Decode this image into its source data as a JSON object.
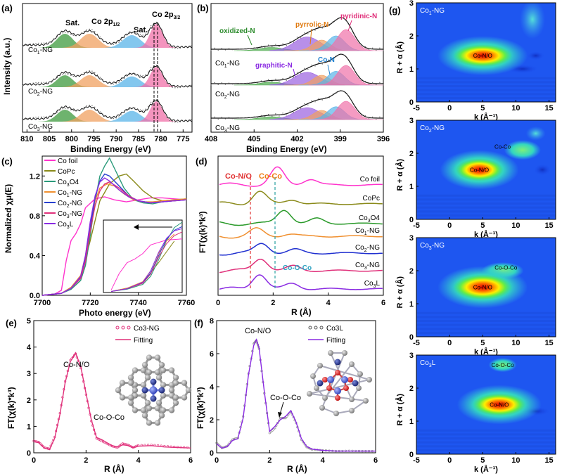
{
  "panels": {
    "a": {
      "letter": "(a)",
      "ylabel": "Intensity (a.u.)",
      "xlabel": "Binding Energy (eV)",
      "ticks": [
        "810",
        "805",
        "800",
        "795",
        "790",
        "785",
        "780",
        "775"
      ],
      "peaks": [
        "Sat.",
        "Co 2p",
        "1/2",
        "Sat.",
        "Co 2p",
        "3/2"
      ],
      "samples": [
        "Co",
        "1",
        "-NG",
        "Co",
        "2",
        "-NG",
        "Co",
        "3",
        "-NG"
      ]
    },
    "b": {
      "letter": "(b)",
      "xlabel": "Binding Energy (eV)",
      "ticks": [
        "408",
        "405",
        "402",
        "399",
        "396"
      ],
      "species": [
        "oxidized-N",
        "pyrrolic-N",
        "pyridinic-N",
        "Co-N",
        "graphitic-N"
      ],
      "samples": [
        "Co",
        "1",
        "-NG",
        "Co",
        "2",
        "-NG",
        "Co",
        "3",
        "-NG"
      ]
    },
    "c": {
      "letter": "(c)",
      "ylabel": "Normalized χμ(E)",
      "xlabel": "Photo energy (eV)",
      "xticks": [
        "7700",
        "7720",
        "7740",
        "7760"
      ],
      "yticks": [
        "0.0",
        "0.4",
        "0.8",
        "1.2"
      ],
      "legend": [
        {
          "label": "Co foil",
          "color": "#ff33cc"
        },
        {
          "label": "CoPc",
          "color": "#8a8a1a"
        },
        {
          "label": "Co3O4",
          "color": "#2a9a7a"
        },
        {
          "label": "Co1-NG",
          "color": "#f09030"
        },
        {
          "label": "Co2-NG",
          "color": "#2840d0"
        },
        {
          "label": "Co3-NG",
          "color": "#e0307a"
        },
        {
          "label": "Co3L",
          "color": "#8a2be2"
        }
      ]
    },
    "d": {
      "letter": "(d)",
      "ylabel": "FT(χ(k)*k³)",
      "xlabel": "R (Å)",
      "xticks": [
        "0",
        "2",
        "4",
        "6"
      ],
      "annotations": [
        "Co-N/O",
        "Co-Co",
        "Co-O-Co"
      ],
      "curves": [
        "Co foil",
        "CoPc",
        "Co3O4",
        "Co1-NG",
        "Co2-NG",
        "Co3-NG",
        "Co3L"
      ],
      "colors": [
        "#ff33cc",
        "#8a8a1a",
        "#2a9a2a",
        "#f09030",
        "#2030d0",
        "#e0307a",
        "#8a2be2"
      ]
    },
    "e": {
      "letter": "(e)",
      "ylabel": "FT(χ(k)*k³)",
      "xlabel": "R (Å)",
      "xticks": [
        "0",
        "2",
        "4",
        "6"
      ],
      "yticks": [
        "0",
        "1",
        "2",
        "3",
        "4",
        "5"
      ],
      "legend": [
        "Co3-NG",
        "Fitting"
      ],
      "annotations": [
        "Co-N/O",
        "Co-O-Co"
      ]
    },
    "f": {
      "letter": "(f)",
      "ylabel": "FT(χ(k)*k³)",
      "xlabel": "R (Å)",
      "xticks": [
        "0",
        "2",
        "4",
        "6"
      ],
      "yticks": [
        "0",
        "2",
        "4",
        "6",
        "8"
      ],
      "legend": [
        "Co3L",
        "Fitting"
      ],
      "annotations": [
        "Co-N/O",
        "Co-O-Co"
      ]
    },
    "g": {
      "letter": "(g)",
      "ylabel": "R + α (Å)",
      "xlabel": "k (Å⁻¹)",
      "xticks": [
        "-5",
        "0",
        "5",
        "10",
        "15"
      ],
      "yticks": [
        "0",
        "1",
        "2",
        "3"
      ],
      "maps": [
        {
          "sample": "Co1-NG",
          "labels": [
            "Co-N/O"
          ]
        },
        {
          "sample": "Co2-NG",
          "labels": [
            "Co-N/O",
            "Co-Co"
          ]
        },
        {
          "sample": "Co3-NG",
          "labels": [
            "Co-N/O",
            "Co-O-Co"
          ]
        },
        {
          "sample": "Co3L",
          "labels": [
            "Co-N/O",
            "Co-O-Co"
          ]
        }
      ]
    }
  },
  "chart_data": [
    {
      "type": "line",
      "title": "",
      "panel": "a",
      "xlabel": "Binding Energy (eV)",
      "ylabel": "Intensity (a.u.)",
      "xlim": [
        811,
        773
      ],
      "series": [
        {
          "name": "Co1-NG"
        },
        {
          "name": "Co2-NG"
        },
        {
          "name": "Co3-NG"
        }
      ],
      "peak_positions_eV": {
        "Sat. (2p1/2)": 801.5,
        "Co 2p1/2": 796,
        "Sat. (2p3/2)": 786.5,
        "Co 2p3/2": 781
      }
    },
    {
      "type": "line",
      "panel": "b",
      "xlabel": "Binding Energy (eV)",
      "xlim": [
        408,
        396
      ],
      "series": [
        {
          "name": "Co1-NG"
        },
        {
          "name": "Co2-NG"
        },
        {
          "name": "Co3-NG"
        }
      ],
      "component_positions_eV": {
        "oxidized-N": 403.5,
        "pyrrolic-N": 400.5,
        "graphitic-N": 401.2,
        "Co-N": 399.3,
        "pyridinic-N": 398.5
      }
    },
    {
      "type": "line",
      "panel": "c",
      "xlabel": "Photo energy (eV)",
      "ylabel": "Normalized χμ(E)",
      "xlim": [
        7700,
        7760
      ],
      "ylim": [
        0,
        1.4
      ],
      "series": [
        {
          "name": "Co foil",
          "x": [
            7700,
            7705,
            7708,
            7710,
            7712,
            7714,
            7716,
            7718,
            7722,
            7726,
            7730,
            7735,
            7740,
            7745,
            7750,
            7755,
            7760
          ],
          "y": [
            0,
            0.01,
            0.05,
            0.35,
            0.55,
            0.62,
            0.72,
            0.88,
            0.97,
            0.99,
            0.96,
            0.94,
            0.96,
            0.98,
            0.98,
            0.97,
            0.96
          ]
        },
        {
          "name": "CoPc",
          "x": [
            7700,
            7708,
            7712,
            7716,
            7720,
            7724,
            7728,
            7732,
            7735,
            7738,
            7742,
            7746,
            7750,
            7755,
            7760
          ],
          "y": [
            0,
            0.02,
            0.08,
            0.18,
            0.55,
            0.95,
            1.12,
            1.2,
            1.22,
            1.15,
            1.05,
            0.98,
            0.95,
            0.96,
            0.97
          ]
        },
        {
          "name": "Co3O4",
          "x": [
            7700,
            7708,
            7712,
            7716,
            7718,
            7720,
            7722,
            7724,
            7726,
            7728,
            7730,
            7734,
            7738,
            7742,
            7746,
            7750,
            7755,
            7760
          ],
          "y": [
            0,
            0.02,
            0.06,
            0.15,
            0.3,
            0.6,
            0.95,
            1.2,
            1.3,
            1.38,
            1.28,
            1.08,
            0.96,
            0.93,
            0.92,
            0.94,
            0.95,
            0.96
          ]
        },
        {
          "name": "Co1-NG",
          "x": [
            7700,
            7708,
            7712,
            7716,
            7718,
            7720,
            7722,
            7724,
            7727,
            7730,
            7734,
            7738,
            7742,
            7746,
            7750,
            7755,
            7760
          ],
          "y": [
            0,
            0.02,
            0.08,
            0.2,
            0.4,
            0.72,
            0.95,
            1.08,
            1.12,
            1.1,
            1.02,
            0.96,
            0.94,
            0.94,
            0.95,
            0.96,
            0.97
          ]
        },
        {
          "name": "Co2-NG",
          "x": [
            7700,
            7708,
            7712,
            7716,
            7718,
            7720,
            7722,
            7724,
            7726,
            7728,
            7732,
            7736,
            7740,
            7745,
            7750,
            7755,
            7760
          ],
          "y": [
            0,
            0.02,
            0.07,
            0.18,
            0.36,
            0.68,
            0.98,
            1.15,
            1.22,
            1.2,
            1.1,
            1.0,
            0.95,
            0.93,
            0.94,
            0.95,
            0.96
          ]
        },
        {
          "name": "Co3-NG",
          "x": [
            7700,
            7708,
            7712,
            7716,
            7718,
            7720,
            7722,
            7724,
            7726,
            7728,
            7732,
            7736,
            7740,
            7745,
            7750,
            7755,
            7760
          ],
          "y": [
            0,
            0.02,
            0.07,
            0.17,
            0.34,
            0.65,
            0.9,
            1.05,
            1.12,
            1.14,
            1.08,
            1.0,
            0.95,
            0.93,
            0.94,
            0.95,
            0.96
          ]
        },
        {
          "name": "Co3L",
          "x": [
            7700,
            7708,
            7712,
            7716,
            7718,
            7720,
            7722,
            7724,
            7726,
            7728,
            7732,
            7736,
            7740,
            7745,
            7750,
            7755,
            7760
          ],
          "y": [
            0,
            0.02,
            0.07,
            0.19,
            0.4,
            0.74,
            1.0,
            1.14,
            1.18,
            1.15,
            1.06,
            0.99,
            0.95,
            0.93,
            0.94,
            0.95,
            0.96
          ]
        }
      ]
    },
    {
      "type": "line",
      "panel": "d",
      "xlabel": "R (Å)",
      "ylabel": "FT(χ(k)*k³)",
      "xlim": [
        0,
        6
      ],
      "series": [
        {
          "name": "Co foil",
          "peak_R": 2.15
        },
        {
          "name": "CoPc",
          "peak_R": 1.5
        },
        {
          "name": "Co3O4",
          "peak_R": 2.4
        },
        {
          "name": "Co1-NG",
          "peak_R": 1.4
        },
        {
          "name": "Co2-NG",
          "peak_R": 1.6
        },
        {
          "name": "Co3-NG",
          "peak_R": 1.55
        },
        {
          "name": "Co3L",
          "peak_R": 1.5
        }
      ]
    },
    {
      "type": "line",
      "panel": "e",
      "xlabel": "R (Å)",
      "ylabel": "FT(χ(k)*k³)",
      "xlim": [
        0,
        6
      ],
      "ylim": [
        0,
        5
      ],
      "series": [
        {
          "name": "Co3-NG",
          "x": [
            0,
            0.2,
            0.4,
            0.6,
            0.8,
            1.0,
            1.2,
            1.4,
            1.6,
            1.8,
            2.0,
            2.2,
            2.4,
            2.6,
            2.8,
            3.0,
            3.2,
            3.4,
            3.6,
            3.8,
            4.0,
            4.5,
            5.0,
            5.5,
            6.0
          ],
          "y": [
            0.45,
            0.4,
            0.2,
            0.15,
            0.6,
            1.5,
            2.7,
            3.5,
            3.75,
            3.2,
            2.2,
            1.2,
            0.55,
            0.45,
            0.35,
            0.25,
            0.2,
            0.35,
            0.3,
            0.2,
            0.28,
            0.3,
            0.25,
            0.22,
            0.2
          ]
        },
        {
          "name": "Fitting",
          "x": [
            0,
            0.2,
            0.4,
            0.6,
            0.8,
            1.0,
            1.2,
            1.4,
            1.6,
            1.8,
            2.0,
            2.2,
            2.4,
            2.6,
            2.8,
            3.0,
            3.2,
            3.4,
            3.6,
            3.8,
            4.0,
            4.5,
            5.0,
            5.5,
            6.0
          ],
          "y": [
            0.42,
            0.38,
            0.18,
            0.12,
            0.55,
            1.45,
            2.65,
            3.45,
            3.78,
            3.25,
            2.25,
            1.25,
            0.58,
            0.5,
            0.38,
            0.27,
            0.22,
            0.3,
            0.28,
            0.2,
            0.25,
            0.27,
            0.22,
            0.2,
            0.18
          ]
        }
      ]
    },
    {
      "type": "line",
      "panel": "f",
      "xlabel": "R (Å)",
      "ylabel": "FT(χ(k)*k³)",
      "xlim": [
        0,
        6
      ],
      "ylim": [
        0,
        8
      ],
      "series": [
        {
          "name": "Co3L",
          "x": [
            0,
            0.2,
            0.4,
            0.6,
            0.8,
            1.0,
            1.2,
            1.4,
            1.5,
            1.6,
            1.8,
            2.0,
            2.2,
            2.4,
            2.6,
            2.8,
            3.0,
            3.2,
            3.4,
            3.6,
            4.0,
            4.5,
            5.0,
            5.5,
            6.0
          ],
          "y": [
            0.6,
            0.3,
            0.4,
            0.8,
            0.9,
            2.2,
            4.8,
            6.6,
            6.8,
            6.3,
            3.6,
            1.2,
            1.5,
            2.1,
            2.1,
            2.5,
            1.8,
            0.8,
            0.35,
            0.2,
            0.15,
            0.1,
            0.12,
            0.1,
            0.1
          ]
        },
        {
          "name": "Fitting",
          "x": [
            0,
            0.2,
            0.4,
            0.6,
            0.8,
            1.0,
            1.2,
            1.4,
            1.5,
            1.6,
            1.8,
            2.0,
            2.2,
            2.4,
            2.6,
            2.8,
            3.0,
            3.2,
            3.4,
            3.6,
            4.0,
            4.5,
            5.0,
            5.5,
            6.0
          ],
          "y": [
            0.55,
            0.28,
            0.38,
            0.75,
            0.85,
            2.1,
            4.7,
            6.5,
            6.85,
            6.35,
            3.7,
            1.3,
            1.6,
            2.0,
            2.2,
            2.55,
            1.85,
            0.85,
            0.38,
            0.22,
            0.15,
            0.1,
            0.1,
            0.1,
            0.1
          ]
        }
      ]
    },
    {
      "type": "heatmap",
      "panel": "g",
      "xlabel": "k (Å⁻¹)",
      "ylabel": "R + α (Å)",
      "xlim": [
        -5,
        16
      ],
      "ylim": [
        0,
        3
      ],
      "maps": [
        {
          "name": "Co1-NG",
          "maxima": [
            {
              "label": "Co-N/O",
              "k": 5,
              "R": 1.4
            }
          ]
        },
        {
          "name": "Co2-NG",
          "maxima": [
            {
              "label": "Co-N/O",
              "k": 4.5,
              "R": 1.5
            },
            {
              "label": "Co-Co",
              "k": 8,
              "R": 2.2
            }
          ]
        },
        {
          "name": "Co3-NG",
          "maxima": [
            {
              "label": "Co-N/O",
              "k": 5,
              "R": 1.5
            },
            {
              "label": "Co-O-Co",
              "k": 8.5,
              "R": 2.1
            }
          ]
        },
        {
          "name": "Co3L",
          "maxima": [
            {
              "label": "Co-N/O",
              "k": 7.5,
              "R": 1.5
            },
            {
              "label": "Co-O-Co",
              "k": 8,
              "R": 2.7
            }
          ]
        }
      ]
    }
  ]
}
